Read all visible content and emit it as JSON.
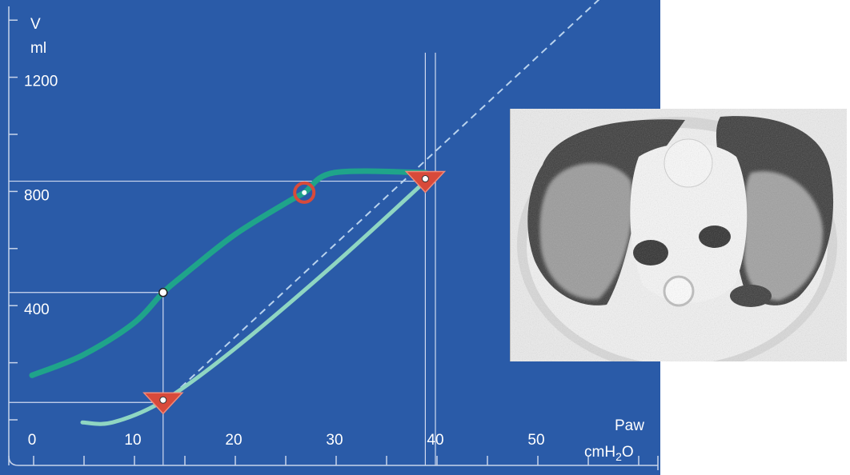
{
  "colors": {
    "background": "#2a5ba8",
    "axis": "#c8d4ea",
    "inflation": "#1fa48a",
    "deflation": "#8fd6c2",
    "marker": "#d84a3a"
  },
  "chart_data": {
    "type": "line",
    "title": "",
    "y_label": {
      "line1": "V",
      "line2": "ml"
    },
    "x_label": {
      "line1": "Paw",
      "unit_base": "cmH",
      "unit_sub": "2",
      "unit_tail": "O"
    },
    "xlim": [
      0,
      60
    ],
    "ylim": [
      0,
      1300
    ],
    "x_ticks": [
      "0",
      "10",
      "20",
      "30",
      "40",
      "50"
    ],
    "y_ticks": [
      "400",
      "800",
      "1200"
    ],
    "series": [
      {
        "role": "inflation",
        "x": [
          0,
          5,
          10,
          13,
          15,
          20,
          25,
          27,
          30,
          39
        ],
        "y": [
          170,
          240,
          350,
          460,
          520,
          660,
          770,
          810,
          880,
          880
        ]
      },
      {
        "role": "deflation",
        "x": [
          5,
          8,
          13,
          20,
          30,
          39
        ],
        "y": [
          5,
          5,
          80,
          260,
          560,
          850
        ]
      }
    ],
    "dashed_line": {
      "x": [
        13,
        60
      ],
      "y": [
        70,
        1610
      ]
    },
    "markers": [
      {
        "shape": "circle",
        "x": 27,
        "y": 810
      },
      {
        "shape": "triangle",
        "x": 39,
        "y": 850
      },
      {
        "shape": "triangle",
        "x": 13,
        "y": 75
      },
      {
        "shape": "dot",
        "x": 13,
        "y": 460
      }
    ],
    "reference_lines": [
      {
        "orientation": "horizontal",
        "y": 850,
        "x_to": 39
      },
      {
        "orientation": "horizontal",
        "y": 460,
        "x_to": 13
      },
      {
        "orientation": "horizontal",
        "y": 75,
        "x_to": 13
      },
      {
        "orientation": "vertical",
        "x": 13,
        "y_to": 460
      },
      {
        "orientation": "vertical",
        "x": 39,
        "y_to": 1300
      },
      {
        "orientation": "vertical",
        "x": 40,
        "y_to": 1300
      }
    ]
  },
  "inset": {
    "kind": "chest CT axial slice"
  }
}
